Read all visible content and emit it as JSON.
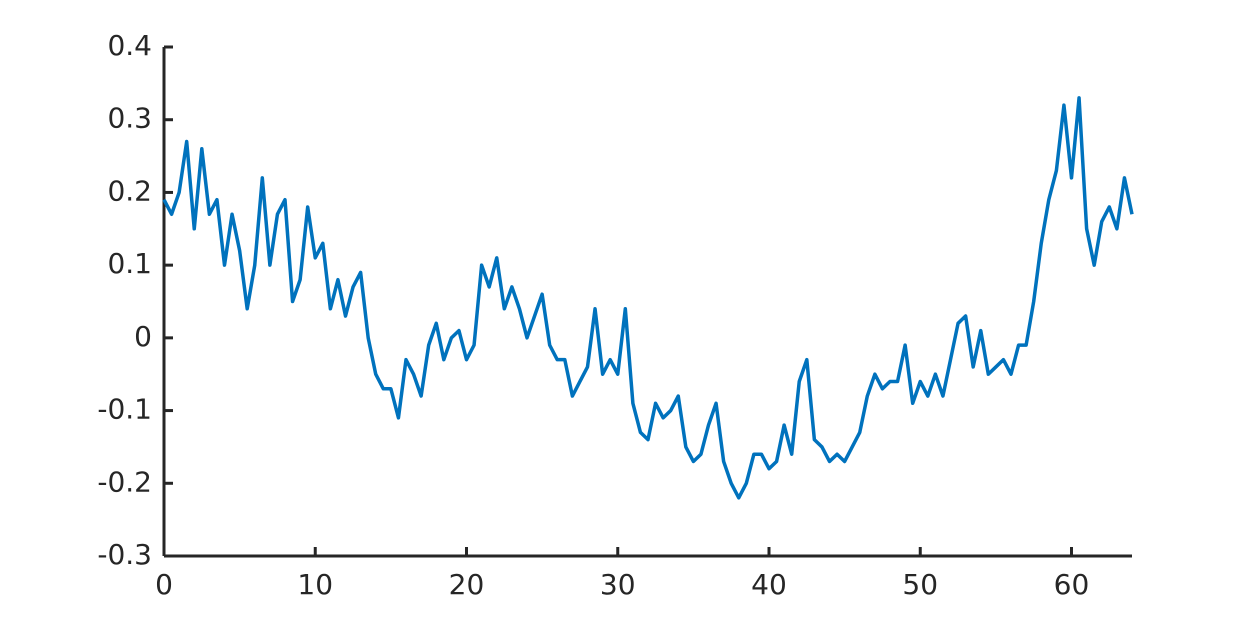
{
  "chart_data": {
    "type": "line",
    "x": [
      0,
      0.5,
      1,
      1.5,
      2,
      2.5,
      3,
      3.5,
      4,
      4.5,
      5,
      5.5,
      6,
      6.5,
      7,
      7.5,
      8,
      8.5,
      9,
      9.5,
      10,
      10.5,
      11,
      11.5,
      12,
      12.5,
      13,
      13.5,
      14,
      14.5,
      15,
      15.5,
      16,
      16.5,
      17,
      17.5,
      18,
      18.5,
      19,
      19.5,
      20,
      20.5,
      21,
      21.5,
      22,
      22.5,
      23,
      23.5,
      24,
      24.5,
      25,
      25.5,
      26,
      26.5,
      27,
      27.5,
      28,
      28.5,
      29,
      29.5,
      30,
      30.5,
      31,
      31.5,
      32,
      32.5,
      33,
      33.5,
      34,
      34.5,
      35,
      35.5,
      36,
      36.5,
      37,
      37.5,
      38,
      38.5,
      39,
      39.5,
      40,
      40.5,
      41,
      41.5,
      42,
      42.5,
      43,
      43.5,
      44,
      44.5,
      45,
      45.5,
      46,
      46.5,
      47,
      47.5,
      48,
      48.5,
      49,
      49.5,
      50,
      50.5,
      51,
      51.5,
      52,
      52.5,
      53,
      53.5,
      54,
      54.5,
      55,
      55.5,
      56,
      56.5,
      57,
      57.5,
      58,
      58.5,
      59,
      59.5,
      60,
      60.5,
      61,
      61.5,
      62,
      62.5,
      63,
      63.5,
      64
    ],
    "series": [
      {
        "color": "#0072bd",
        "values": [
          0.19,
          0.17,
          0.2,
          0.27,
          0.15,
          0.26,
          0.17,
          0.19,
          0.1,
          0.17,
          0.12,
          0.04,
          0.1,
          0.22,
          0.1,
          0.17,
          0.19,
          0.05,
          0.08,
          0.18,
          0.11,
          0.13,
          0.04,
          0.08,
          0.03,
          0.07,
          0.09,
          0.0,
          -0.05,
          -0.07,
          -0.07,
          -0.11,
          -0.03,
          -0.05,
          -0.08,
          -0.01,
          0.02,
          -0.03,
          0.0,
          0.01,
          -0.03,
          -0.01,
          0.1,
          0.07,
          0.11,
          0.04,
          0.07,
          0.04,
          0.0,
          0.03,
          0.06,
          -0.01,
          -0.03,
          -0.03,
          -0.08,
          -0.06,
          -0.04,
          0.04,
          -0.05,
          -0.03,
          -0.05,
          0.04,
          -0.09,
          -0.13,
          -0.14,
          -0.09,
          -0.11,
          -0.1,
          -0.08,
          -0.15,
          -0.17,
          -0.16,
          -0.12,
          -0.09,
          -0.17,
          -0.2,
          -0.22,
          -0.2,
          -0.16,
          -0.16,
          -0.18,
          -0.17,
          -0.12,
          -0.16,
          -0.06,
          -0.03,
          -0.14,
          -0.15,
          -0.17,
          -0.16,
          -0.17,
          -0.15,
          -0.13,
          -0.08,
          -0.05,
          -0.07,
          -0.06,
          -0.06,
          -0.01,
          -0.09,
          -0.06,
          -0.08,
          -0.05,
          -0.08,
          -0.03,
          0.02,
          0.03,
          -0.04,
          0.01,
          -0.05,
          -0.04,
          -0.03,
          -0.05,
          -0.01,
          -0.01,
          0.05,
          0.13,
          0.19,
          0.23,
          0.32,
          0.22,
          0.33,
          0.15,
          0.1,
          0.16,
          0.18,
          0.15,
          0.22,
          0.17
        ]
      }
    ],
    "xlim": [
      0,
      64
    ],
    "xticks": [
      0,
      10,
      20,
      30,
      40,
      50,
      60
    ],
    "ylim": [
      -0.3,
      0.4
    ],
    "yticks": [
      -0.3,
      -0.2,
      -0.1,
      0,
      0.1,
      0.2,
      0.3,
      0.4
    ]
  }
}
